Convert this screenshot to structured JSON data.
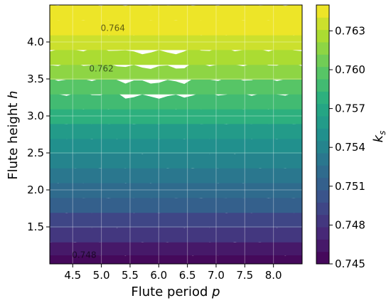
{
  "chart_data": {
    "type": "heatmap",
    "subtype": "filled-contour",
    "xlabel": "Flute period",
    "xlabel_symbol": "p",
    "ylabel": "Flute height",
    "ylabel_symbol": "h",
    "xlim": [
      4.1,
      8.5
    ],
    "ylim": [
      1.0,
      4.5
    ],
    "xticks": [
      "4.5",
      "5.0",
      "5.5",
      "6.0",
      "6.5",
      "7.0",
      "7.5",
      "8.0"
    ],
    "yticks": [
      "1.5",
      "2.0",
      "2.5",
      "3.0",
      "3.5",
      "4.0"
    ],
    "grid": true,
    "colormap": "viridis",
    "colorbar": {
      "label": "k",
      "label_subscript": "s",
      "range": [
        0.745,
        0.765
      ],
      "ticks": [
        "0.745",
        "0.748",
        "0.751",
        "0.754",
        "0.757",
        "0.760",
        "0.763"
      ],
      "levels": 21
    },
    "contour_labels": [
      "0.764",
      "0.762",
      "0.748"
    ],
    "field": {
      "rows_h": [
        1.05,
        1.2,
        1.4,
        1.6,
        1.8,
        2.0,
        2.2,
        2.4,
        2.6,
        2.8,
        3.0,
        3.2,
        3.4,
        3.6,
        3.8,
        4.0,
        4.2,
        4.4
      ],
      "values_ks": [
        0.7455,
        0.7465,
        0.748,
        0.7495,
        0.7508,
        0.752,
        0.753,
        0.754,
        0.755,
        0.7562,
        0.7575,
        0.7588,
        0.76,
        0.7612,
        0.7625,
        0.7635,
        0.7643,
        0.765
      ]
    }
  }
}
